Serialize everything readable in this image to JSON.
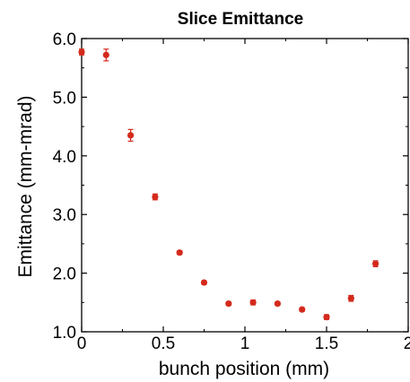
{
  "chart_data": {
    "type": "scatter",
    "title": "Slice Emittance",
    "xlabel": "bunch position (mm)",
    "ylabel": "Emittance (mm-mrad)",
    "xlim": [
      0,
      2
    ],
    "ylim": [
      1.0,
      6.0
    ],
    "x_ticks": [
      "0",
      "0.5",
      "1",
      "1.5",
      "2"
    ],
    "x_tick_values": [
      0,
      0.5,
      1,
      1.5,
      2
    ],
    "y_ticks": [
      "1.0",
      "2.0",
      "3.0",
      "4.0",
      "5.0",
      "6.0"
    ],
    "y_tick_values": [
      1,
      2,
      3,
      4,
      5,
      6
    ],
    "grid": false,
    "marker_color": "#d42a1c",
    "series": [
      {
        "x": [
          0.0,
          0.15,
          0.3,
          0.45,
          0.6,
          0.75,
          0.9,
          1.05,
          1.2,
          1.35,
          1.5,
          1.65,
          1.8
        ],
        "y": [
          5.77,
          5.72,
          4.35,
          3.3,
          2.35,
          1.84,
          1.48,
          1.5,
          1.48,
          1.38,
          1.25,
          1.57,
          2.16
        ],
        "yerr": [
          0.05,
          0.1,
          0.1,
          0.05,
          0.03,
          0.03,
          0.03,
          0.04,
          0.03,
          0.03,
          0.04,
          0.05,
          0.05
        ]
      }
    ]
  }
}
